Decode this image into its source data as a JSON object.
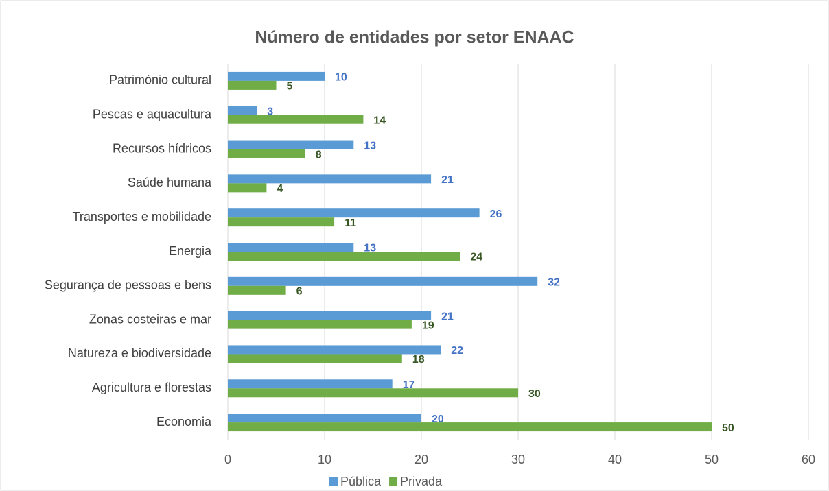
{
  "chart_data": {
    "type": "bar",
    "orientation": "horizontal",
    "title": "Número de entidades por setor ENAAC",
    "categories": [
      "Património cultural",
      "Pescas e aquacultura",
      "Recursos hídricos",
      "Saúde humana",
      "Transportes e mobilidade",
      "Energia",
      "Segurança de pessoas e bens",
      "Zonas costeiras e mar",
      "Natureza e biodiversidade",
      "Agricultura e florestas",
      "Economia"
    ],
    "series": [
      {
        "name": "Pública",
        "color": "#5b9bd5",
        "label_color": "#4472c4",
        "values": [
          10,
          3,
          13,
          21,
          26,
          13,
          32,
          21,
          22,
          17,
          20
        ]
      },
      {
        "name": "Privada",
        "color": "#70ad47",
        "label_color": "#375623",
        "values": [
          5,
          14,
          8,
          4,
          11,
          24,
          6,
          19,
          18,
          30,
          50
        ]
      }
    ],
    "xlim": [
      0,
      60
    ],
    "xticks": [
      0,
      10,
      20,
      30,
      40,
      50,
      60
    ],
    "grid": true,
    "legend": "bottom"
  }
}
